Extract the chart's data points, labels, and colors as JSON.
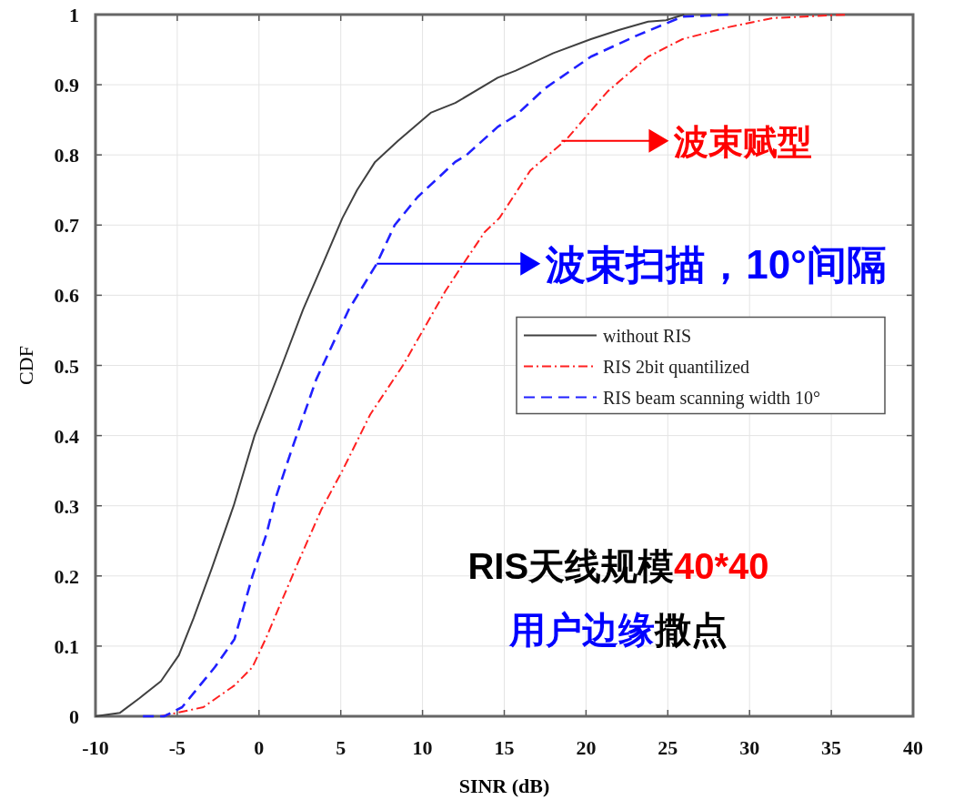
{
  "chart_data": {
    "type": "line",
    "xlabel": "SINR (dB)",
    "ylabel": "CDF",
    "xlim": [
      -10,
      40
    ],
    "ylim": [
      0,
      1
    ],
    "xticks": [
      -10,
      -5,
      0,
      5,
      10,
      15,
      20,
      25,
      30,
      35,
      40
    ],
    "yticks": [
      0,
      0.1,
      0.2,
      0.3,
      0.4,
      0.5,
      0.6,
      0.7,
      0.8,
      0.9,
      1
    ],
    "grid": true,
    "legend": "right",
    "marker": "none",
    "series": [
      {
        "name": "without RIS",
        "color": "#404040",
        "line_style": "solid",
        "x": [
          -10,
          -8.5,
          -7.3,
          -6,
          -4.9,
          -4,
          -2.9,
          -1.55,
          -0.27,
          1.4,
          2.7,
          4,
          5.1,
          6,
          7.1,
          8.5,
          10.5,
          12,
          14.6,
          15.7,
          18,
          20.3,
          22,
          23.8,
          24.9,
          26
        ],
        "values": [
          0,
          0.005,
          0.026,
          0.05,
          0.087,
          0.14,
          0.21,
          0.3,
          0.4,
          0.5,
          0.58,
          0.65,
          0.71,
          0.75,
          0.79,
          0.82,
          0.86,
          0.874,
          0.91,
          0.92,
          0.945,
          0.965,
          0.978,
          0.99,
          0.992,
          1
        ]
      },
      {
        "name": "RIS 2bit quantilized",
        "color": "#ff2020",
        "line_style": "dashdot",
        "x": [
          -6,
          -3.4,
          -1.5,
          -0.4,
          0.46,
          1.4,
          2.35,
          3.8,
          5.1,
          6.8,
          8.8,
          11.4,
          12.5,
          13.8,
          14.7,
          16.6,
          18.8,
          21.3,
          23.8,
          25.9,
          28.7,
          31.4,
          36
        ],
        "values": [
          0,
          0.013,
          0.044,
          0.07,
          0.113,
          0.165,
          0.217,
          0.294,
          0.35,
          0.43,
          0.5,
          0.606,
          0.645,
          0.69,
          0.71,
          0.778,
          0.822,
          0.89,
          0.94,
          0.965,
          0.982,
          0.995,
          1
        ]
      },
      {
        "name": "RIS beam scanning width 10°",
        "color": "#2020ff",
        "line_style": "dashed",
        "x": [
          -7.1,
          -5.8,
          -4.7,
          -2.7,
          -1.5,
          -0.4,
          0.46,
          1,
          2,
          3.5,
          5.5,
          7.2,
          8.3,
          9.7,
          12,
          12.7,
          14.6,
          15.7,
          17.5,
          20.3,
          23.1,
          25.9,
          28.7
        ],
        "values": [
          0,
          0,
          0.013,
          0.07,
          0.11,
          0.2,
          0.26,
          0.31,
          0.38,
          0.48,
          0.58,
          0.645,
          0.7,
          0.74,
          0.79,
          0.8,
          0.84,
          0.856,
          0.895,
          0.94,
          0.97,
          0.997,
          1
        ]
      }
    ],
    "annotations": [
      {
        "text": "波束赋型",
        "x": 18.5,
        "y": 0.82
      },
      {
        "text": "波束扫描，10°间隔",
        "x": 7.2,
        "y": 0.645
      },
      "RIS天线规模",
      "40*40",
      "用户边缘",
      "撒点"
    ]
  }
}
